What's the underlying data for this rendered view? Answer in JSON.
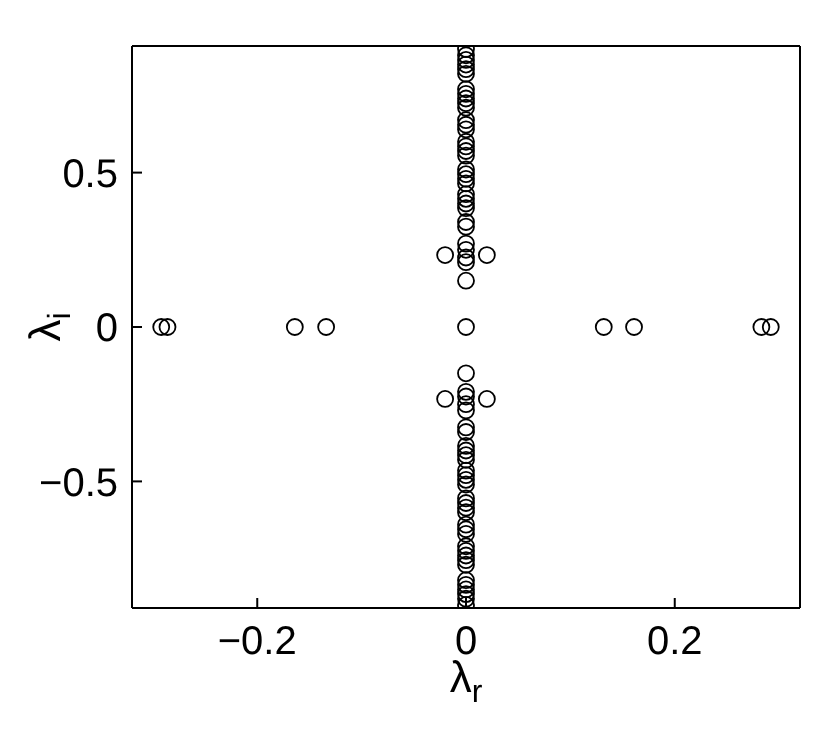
{
  "chart_data": {
    "type": "scatter",
    "xlabel": "λ$_{r}$",
    "ylabel": "λ$_{i}$",
    "x": [
      -0.292,
      -0.286,
      -0.164,
      -0.134,
      0,
      0.132,
      0.161,
      0.283,
      0.292,
      -0.02,
      0.02,
      -0.02,
      0.02,
      0,
      0,
      0,
      0,
      0,
      0,
      0,
      0,
      0,
      0,
      0,
      0,
      0,
      0,
      0,
      0,
      0,
      0,
      0,
      0,
      0,
      0,
      0,
      0,
      0,
      0,
      0,
      0,
      0,
      0,
      0,
      0,
      0,
      0,
      0,
      0,
      0,
      0,
      0,
      0,
      0,
      0,
      0,
      0,
      0,
      0,
      0,
      0,
      0,
      0,
      0,
      0,
      0,
      0,
      0,
      0,
      0,
      0,
      0,
      0,
      0,
      0,
      0,
      0,
      0,
      0
    ],
    "values": [
      0,
      0,
      0,
      0,
      0,
      0,
      0,
      0,
      0,
      0.233,
      0.233,
      -0.233,
      -0.233,
      0.9,
      0.88,
      0.865,
      0.85,
      0.835,
      0.82,
      0.77,
      0.755,
      0.74,
      0.725,
      0.71,
      0.67,
      0.655,
      0.64,
      0.6,
      0.585,
      0.57,
      0.555,
      0.51,
      0.495,
      0.48,
      0.465,
      0.43,
      0.415,
      0.4,
      0.385,
      0.34,
      0.325,
      0.27,
      0.25,
      0.225,
      0.21,
      0.15,
      -0.9,
      -0.88,
      -0.865,
      -0.85,
      -0.835,
      -0.82,
      -0.77,
      -0.755,
      -0.74,
      -0.725,
      -0.71,
      -0.67,
      -0.655,
      -0.64,
      -0.6,
      -0.585,
      -0.57,
      -0.555,
      -0.51,
      -0.495,
      -0.48,
      -0.465,
      -0.43,
      -0.415,
      -0.4,
      -0.385,
      -0.34,
      -0.325,
      -0.27,
      -0.25,
      -0.225,
      -0.21,
      -0.15
    ],
    "color": "#000000",
    "marker": "circle",
    "xlim": [
      -0.32,
      0.32
    ],
    "ylim": [
      -0.91,
      0.91
    ],
    "xticks": [
      -0.2,
      0,
      0.2
    ],
    "yticks": [
      -0.5,
      0,
      0.5
    ]
  }
}
